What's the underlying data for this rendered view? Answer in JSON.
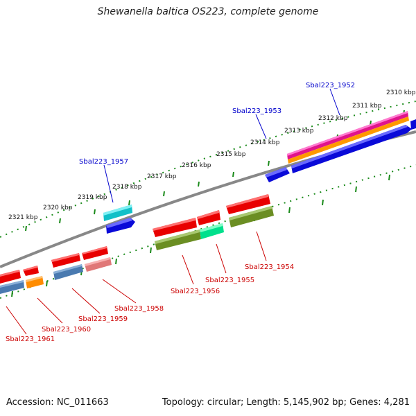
{
  "title": "Shewanella baltica OS223, complete genome",
  "footer": {
    "accession": "Accession: NC_011663",
    "summary": "Topology: circular; Length: 5,145,902 bp; Genes: 4,281"
  },
  "colors": {
    "backbone": "#808080",
    "tick_line": "#1a8a1a",
    "forward_label": "#0000cc",
    "reverse_label": "#cc0000"
  },
  "scale_ticks": [
    {
      "label": "2321 kbp"
    },
    {
      "label": "2320 kbp"
    },
    {
      "label": "2319 kbp"
    },
    {
      "label": "2318 kbp"
    },
    {
      "label": "2317 kbp"
    },
    {
      "label": "2316 kbp"
    },
    {
      "label": "2315 kbp"
    },
    {
      "label": "2314 kbp"
    },
    {
      "label": "2313 kbp"
    },
    {
      "label": "2312 kbp"
    },
    {
      "label": "2311 kbp"
    },
    {
      "label": "2310 kbp"
    }
  ],
  "gene_labels": {
    "forward": [
      "Sbal223_1957",
      "Sbal223_1953",
      "Sbal223_1952"
    ],
    "reverse": [
      "Sbal223_1961",
      "Sbal223_1960",
      "Sbal223_1959",
      "Sbal223_1958",
      "Sbal223_1956",
      "Sbal223_1955",
      "Sbal223_1954"
    ]
  },
  "feature_colors": [
    "red",
    "blue",
    "cyan",
    "orange",
    "magenta",
    "spring-green",
    "olive",
    "steel-blue",
    "light-red"
  ]
}
